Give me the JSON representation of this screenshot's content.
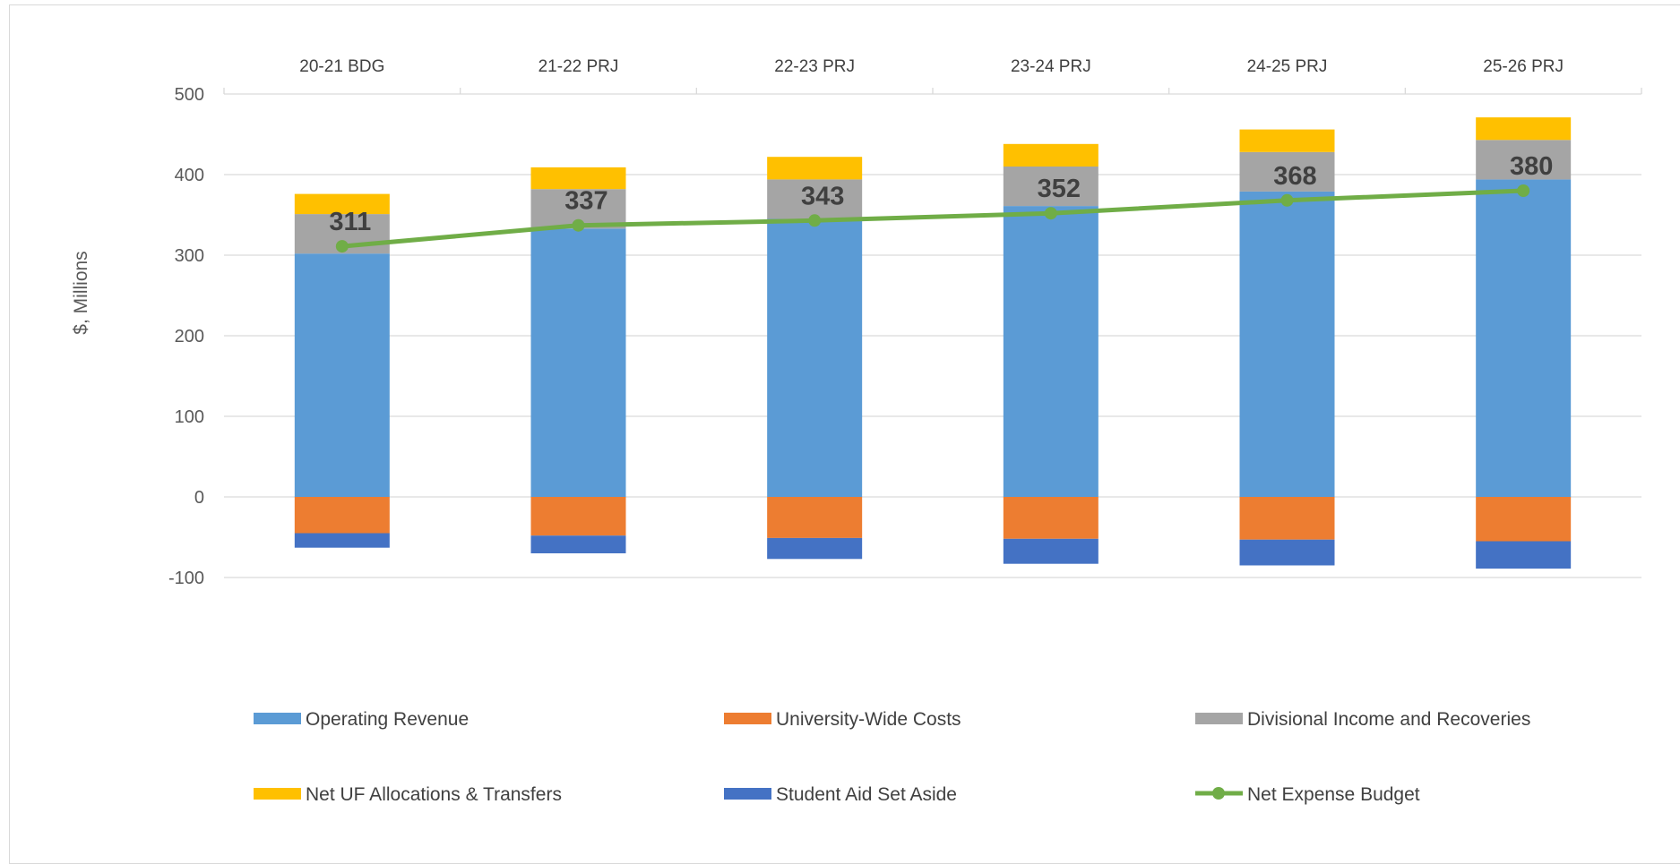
{
  "chart_data": {
    "type": "bar",
    "stacked": true,
    "categories": [
      "20-21 BDG",
      "21-22 PRJ",
      "22-23 PRJ",
      "23-24 PRJ",
      "24-25 PRJ",
      "25-26 PRJ"
    ],
    "ylabel": "$, Millions",
    "ylim": [
      -100,
      500
    ],
    "yticks": [
      -100,
      0,
      100,
      200,
      300,
      400,
      500
    ],
    "xaxis_position": "top",
    "grid": true,
    "legend_position": "bottom",
    "series": [
      {
        "name": "Operating Revenue",
        "type": "bar",
        "color": "#5b9bd5",
        "values": [
          302,
          333,
          345,
          361,
          379,
          394
        ]
      },
      {
        "name": "University-Wide Costs",
        "type": "bar",
        "color": "#ed7d31",
        "values": [
          -45,
          -48,
          -51,
          -52,
          -53,
          -55
        ]
      },
      {
        "name": "Divisional Income and Recoveries",
        "type": "bar",
        "color": "#a5a5a5",
        "values": [
          49,
          49,
          49,
          49,
          49,
          49
        ]
      },
      {
        "name": "Net UF Allocations & Transfers",
        "type": "bar",
        "color": "#ffc000",
        "values": [
          25,
          27,
          28,
          28,
          28,
          28
        ]
      },
      {
        "name": "Student Aid Set Aside",
        "type": "bar",
        "color": "#4472c4",
        "values": [
          -18,
          -22,
          -26,
          -31,
          -32,
          -34
        ]
      },
      {
        "name": "Net Expense Budget",
        "type": "line",
        "color": "#70ad47",
        "values": [
          311,
          337,
          343,
          352,
          368,
          380
        ],
        "data_labels": [
          "311",
          "337",
          "343",
          "352",
          "368",
          "380"
        ]
      }
    ]
  }
}
